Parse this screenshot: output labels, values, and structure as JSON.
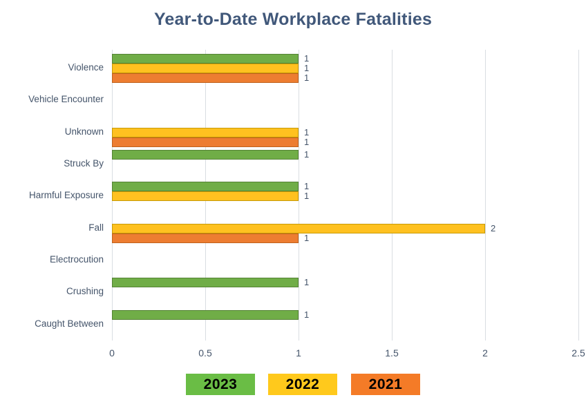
{
  "chart_data": {
    "type": "bar",
    "orientation": "horizontal",
    "title": "Year-to-Date Workplace Fatalities",
    "categories": [
      "Violence",
      "Vehicle Encounter",
      "Unknown",
      "Struck By",
      "Harmful Exposure",
      "Fall",
      "Electrocution",
      "Crushing",
      "Caught Between"
    ],
    "series": [
      {
        "name": "2023",
        "fill": "#70AD47",
        "border": "#548235",
        "legend_fill": "#6ABD45",
        "values": [
          1,
          0,
          0,
          1,
          1,
          0,
          0,
          1,
          1
        ]
      },
      {
        "name": "2022",
        "fill": "#FFC120",
        "border": "#C79A05",
        "legend_fill": "#FFC91C",
        "values": [
          1,
          0,
          1,
          0,
          1,
          2,
          0,
          0,
          0
        ]
      },
      {
        "name": "2021",
        "fill": "#ED7D31",
        "border": "#BE621D",
        "legend_fill": "#F47B27",
        "values": [
          1,
          0,
          1,
          0,
          0,
          1,
          0,
          0,
          0
        ]
      }
    ],
    "x_ticks": [
      {
        "label": "0",
        "value": 0
      },
      {
        "label": "0.5",
        "value": 0.5
      },
      {
        "label": "1",
        "value": 1
      },
      {
        "label": "1.5",
        "value": 1.5
      },
      {
        "label": "2",
        "value": 2
      },
      {
        "label": "2.5",
        "value": 2.5
      }
    ],
    "xlim": [
      0,
      2.5
    ],
    "grid": "vertical-only",
    "legend_position": "bottom",
    "data_labels": true,
    "colors": {
      "title_text": "#41587a",
      "axis_text": "#44546a",
      "gridline": "#d9dde2",
      "legend_text": "#000000",
      "background": "#ffffff"
    }
  }
}
